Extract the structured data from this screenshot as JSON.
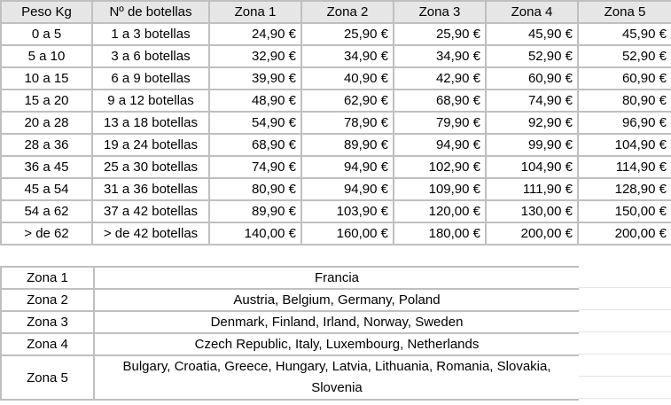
{
  "rates": {
    "headers": [
      "Peso Kg",
      "Nº de botellas",
      "Zona 1",
      "Zona 2",
      "Zona 3",
      "Zona 4",
      "Zona 5"
    ],
    "rows": [
      [
        "0 a 5",
        "1 a 3 botellas",
        "24,90 €",
        "25,90 €",
        "25,90 €",
        "45,90 €",
        "45,90 €"
      ],
      [
        "5 a 10",
        "3 a 6 botellas",
        "32,90 €",
        "34,90 €",
        "34,90 €",
        "52,90 €",
        "52,90 €"
      ],
      [
        "10 a 15",
        "6 a 9 botellas",
        "39,90 €",
        "40,90 €",
        "42,90 €",
        "60,90 €",
        "60,90 €"
      ],
      [
        "15 a 20",
        "9 a 12 botellas",
        "48,90 €",
        "62,90 €",
        "68,90 €",
        "74,90 €",
        "80,90 €"
      ],
      [
        "20 a 28",
        "13 a 18 botellas",
        "54,90 €",
        "78,90 €",
        "79,90 €",
        "92,90 €",
        "96,90 €"
      ],
      [
        "28 a 36",
        "19 a 24 botellas",
        "68,90 €",
        "89,90 €",
        "94,90 €",
        "99,90 €",
        "104,90 €"
      ],
      [
        "36 a 45",
        "25 a 30 botellas",
        "74,90 €",
        "94,90 €",
        "102,90 €",
        "104,90 €",
        "114,90 €"
      ],
      [
        "45 a 54",
        "31 a 36 botellas",
        "80,90 €",
        "94,90 €",
        "109,90 €",
        "111,90 €",
        "128,90 €"
      ],
      [
        "54 a 62",
        "37 a 42 botellas",
        "89,90 €",
        "103,90 €",
        "120,00 €",
        "130,00 €",
        "150,00 €"
      ],
      [
        "> de 62",
        "> de 42 botellas",
        "140,00 €",
        "160,00 €",
        "180,00 €",
        "200,00 €",
        "200,00 €"
      ]
    ]
  },
  "zones": [
    [
      "Zona 1",
      "Francia"
    ],
    [
      "Zona 2",
      "Austria, Belgium, Germany, Poland"
    ],
    [
      "Zona 3",
      "Denmark, Finland, Irland, Norway, Sweden"
    ],
    [
      "Zona 4",
      "Czech Republic, Italy, Luxembourg, Netherlands"
    ],
    [
      "Zona 5",
      "Bulgary, Croatia, Greece, Hungary, Latvia, Lithuania, Romania, Slovakia, Slovenia"
    ]
  ]
}
